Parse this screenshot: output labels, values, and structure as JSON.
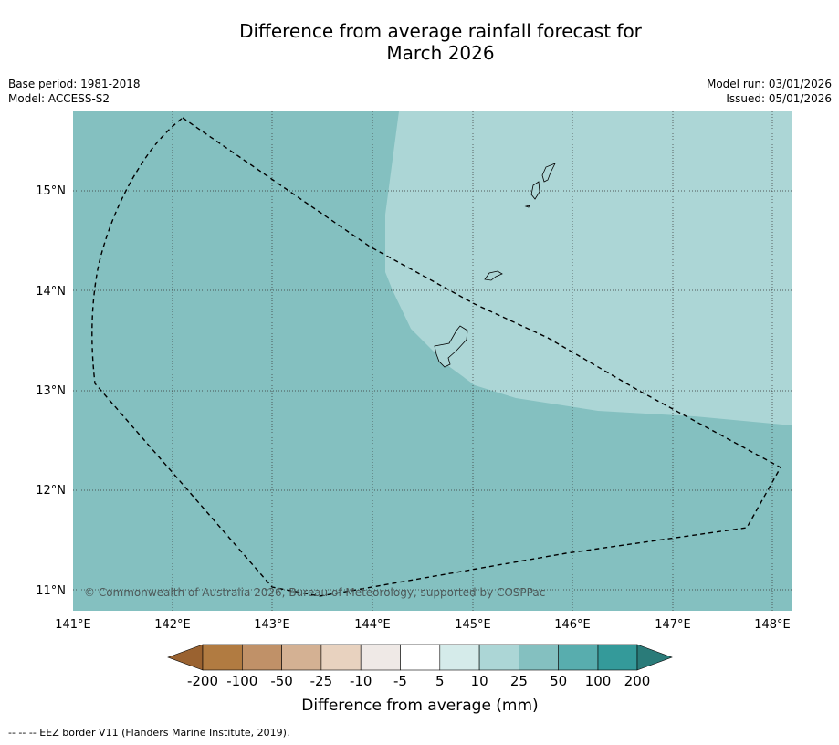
{
  "title": {
    "line1": "Difference from average rainfall forecast for",
    "line2": "March 2026"
  },
  "meta_left": {
    "base_period": "Base period: 1981-2018",
    "model": "Model: ACCESS-S2"
  },
  "meta_right": {
    "model_run": "Model run: 03/01/2026",
    "issued": "Issued: 05/01/2026"
  },
  "map": {
    "lat_labels": [
      "15°N",
      "14°N",
      "13°N",
      "12°N",
      "11°N"
    ],
    "lon_labels": [
      "141°E",
      "142°E",
      "143°E",
      "144°E",
      "145°E",
      "146°E",
      "147°E",
      "148°E"
    ],
    "copyright": "© Commonwealth of Australia 2026, Bureau of Meteorology, supported by COSPPac",
    "colors": {
      "region_25_50": "#84c0c0",
      "region_10_25": "#acd6d6"
    }
  },
  "legend": {
    "ticks": [
      "-200",
      "-100",
      "-50",
      "-25",
      "-10",
      "-5",
      "5",
      "10",
      "25",
      "50",
      "100",
      "200"
    ],
    "label": "Difference from average (mm)",
    "colors": [
      "#9a6230",
      "#b17b41",
      "#c09168",
      "#d4b193",
      "#e8d2bf",
      "#efe9e6",
      "#ffffff",
      "#d5ebea",
      "#acd6d6",
      "#84c0c0",
      "#58adae",
      "#349a9a",
      "#2a7b79"
    ]
  },
  "footnote": "--  --  -- EEZ border V11 (Flanders Marine Institute, 2019)."
}
